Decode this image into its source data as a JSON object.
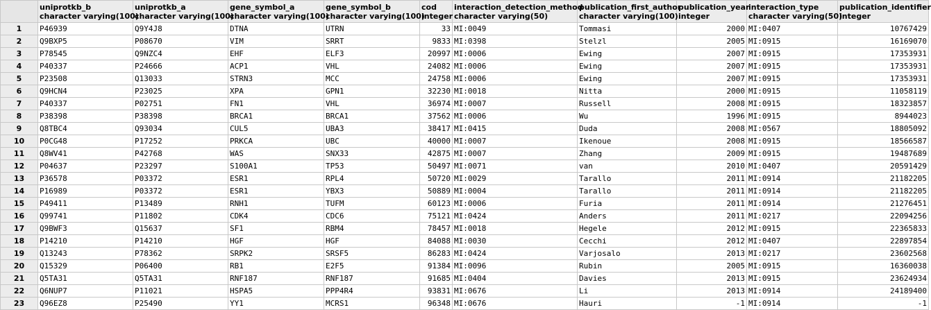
{
  "columns": [
    {
      "name": "uniprotkb_b",
      "type": "character varying(100)"
    },
    {
      "name": "uniprotkb_a",
      "type": "character varying(100)"
    },
    {
      "name": "gene_symbol_a",
      "type": "character varying(100)"
    },
    {
      "name": "gene_symbol_b",
      "type": "character varying(100)"
    },
    {
      "name": "cod",
      "type": "integer"
    },
    {
      "name": "interaction_detection_method",
      "type": "character varying(50)"
    },
    {
      "name": "publication_first_author",
      "type": "character varying(100)"
    },
    {
      "name": "publication_year",
      "type": "integer"
    },
    {
      "name": "interaction_type",
      "type": "character varying(50)"
    },
    {
      "name": "publication_identifier",
      "type": "integer"
    }
  ],
  "rows": [
    {
      "n": "1",
      "cells": [
        "P46939",
        "Q9Y4J8",
        "DTNA",
        "UTRN",
        "33",
        "MI:0049",
        "Tommasi",
        "2000",
        "MI:0407",
        "10767429"
      ]
    },
    {
      "n": "2",
      "cells": [
        "Q9BXP5",
        "P08670",
        "VIM",
        "SRRT",
        "9833",
        "MI:0398",
        "Stelzl",
        "2005",
        "MI:0915",
        "16169070"
      ]
    },
    {
      "n": "3",
      "cells": [
        "P78545",
        "Q9NZC4",
        "EHF",
        "ELF3",
        "20997",
        "MI:0006",
        "Ewing",
        "2007",
        "MI:0915",
        "17353931"
      ]
    },
    {
      "n": "4",
      "cells": [
        "P40337",
        "P24666",
        "ACP1",
        "VHL",
        "24082",
        "MI:0006",
        "Ewing",
        "2007",
        "MI:0915",
        "17353931"
      ]
    },
    {
      "n": "5",
      "cells": [
        "P23508",
        "Q13033",
        "STRN3",
        "MCC",
        "24758",
        "MI:0006",
        "Ewing",
        "2007",
        "MI:0915",
        "17353931"
      ]
    },
    {
      "n": "6",
      "cells": [
        "Q9HCN4",
        "P23025",
        "XPA",
        "GPN1",
        "32230",
        "MI:0018",
        "Nitta",
        "2000",
        "MI:0915",
        "11058119"
      ]
    },
    {
      "n": "7",
      "cells": [
        "P40337",
        "P02751",
        "FN1",
        "VHL",
        "36974",
        "MI:0007",
        "Russell",
        "2008",
        "MI:0915",
        "18323857"
      ]
    },
    {
      "n": "8",
      "cells": [
        "P38398",
        "P38398",
        "BRCA1",
        "BRCA1",
        "37562",
        "MI:0006",
        "Wu",
        "1996",
        "MI:0915",
        "8944023"
      ]
    },
    {
      "n": "9",
      "cells": [
        "Q8TBC4",
        "Q93034",
        "CUL5",
        "UBA3",
        "38417",
        "MI:0415",
        "Duda",
        "2008",
        "MI:0567",
        "18805092"
      ]
    },
    {
      "n": "10",
      "cells": [
        "P0CG48",
        "P17252",
        "PRKCA",
        "UBC",
        "40000",
        "MI:0007",
        "Ikenoue",
        "2008",
        "MI:0915",
        "18566587"
      ]
    },
    {
      "n": "11",
      "cells": [
        "Q8WV41",
        "P42768",
        "WAS",
        "SNX33",
        "42875",
        "MI:0007",
        "Zhang",
        "2009",
        "MI:0915",
        "19487689"
      ]
    },
    {
      "n": "12",
      "cells": [
        "P04637",
        "P23297",
        "S100A1",
        "TP53",
        "50497",
        "MI:0071",
        "van",
        "2010",
        "MI:0407",
        "20591429"
      ]
    },
    {
      "n": "13",
      "cells": [
        "P36578",
        "P03372",
        "ESR1",
        "RPL4",
        "50720",
        "MI:0029",
        "Tarallo",
        "2011",
        "MI:0914",
        "21182205"
      ]
    },
    {
      "n": "14",
      "cells": [
        "P16989",
        "P03372",
        "ESR1",
        "YBX3",
        "50889",
        "MI:0004",
        "Tarallo",
        "2011",
        "MI:0914",
        "21182205"
      ]
    },
    {
      "n": "15",
      "cells": [
        "P49411",
        "P13489",
        "RNH1",
        "TUFM",
        "60123",
        "MI:0006",
        "Furia",
        "2011",
        "MI:0914",
        "21276451"
      ]
    },
    {
      "n": "16",
      "cells": [
        "Q99741",
        "P11802",
        "CDK4",
        "CDC6",
        "75121",
        "MI:0424",
        "Anders",
        "2011",
        "MI:0217",
        "22094256"
      ]
    },
    {
      "n": "17",
      "cells": [
        "Q9BWF3",
        "Q15637",
        "SF1",
        "RBM4",
        "78457",
        "MI:0018",
        "Hegele",
        "2012",
        "MI:0915",
        "22365833"
      ]
    },
    {
      "n": "18",
      "cells": [
        "P14210",
        "P14210",
        "HGF",
        "HGF",
        "84088",
        "MI:0030",
        "Cecchi",
        "2012",
        "MI:0407",
        "22897854"
      ]
    },
    {
      "n": "19",
      "cells": [
        "Q13243",
        "P78362",
        "SRPK2",
        "SRSF5",
        "86283",
        "MI:0424",
        "Varjosalo",
        "2013",
        "MI:0217",
        "23602568"
      ]
    },
    {
      "n": "20",
      "cells": [
        "Q15329",
        "P06400",
        "RB1",
        "E2F5",
        "91384",
        "MI:0096",
        "Rubin",
        "2005",
        "MI:0915",
        "16360038"
      ]
    },
    {
      "n": "21",
      "cells": [
        "Q5TA31",
        "Q5TA31",
        "RNF187",
        "RNF187",
        "91685",
        "MI:0404",
        "Davies",
        "2013",
        "MI:0915",
        "23624934"
      ]
    },
    {
      "n": "22",
      "cells": [
        "Q6NUP7",
        "P11021",
        "HSPA5",
        "PPP4R4",
        "93831",
        "MI:0676",
        "Li",
        "2013",
        "MI:0914",
        "24189400"
      ]
    },
    {
      "n": "23",
      "cells": [
        "Q96EZ8",
        "P25490",
        "YY1",
        "MCRS1",
        "96348",
        "MI:0676",
        "Hauri",
        "-1",
        "MI:0914",
        "-1"
      ]
    }
  ]
}
